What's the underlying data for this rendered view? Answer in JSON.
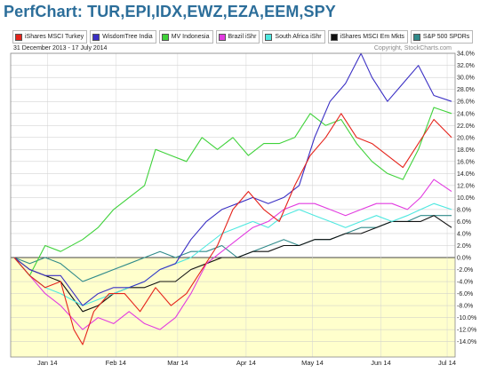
{
  "page": {
    "title": "PerfChart: TUR,EPI,IDX,EWZ,EZA,EEM,SPY"
  },
  "legend": [
    {
      "label": "iShares MSCI Turkey",
      "color": "#e5231b"
    },
    {
      "label": "WisdomTree India",
      "color": "#3a2fc4"
    },
    {
      "label": "MV Indonesia",
      "color": "#3fd23a"
    },
    {
      "label": "Brazil iShr",
      "color": "#e23be0"
    },
    {
      "label": "South Africa iShr",
      "color": "#4de8e0"
    },
    {
      "label": "iShares MSCI Em Mkts",
      "color": "#111111"
    },
    {
      "label": "S&P 500 SPDRs",
      "color": "#2f8a8a"
    }
  ],
  "chart_data": {
    "type": "line",
    "date_range_label": "31 December 2013 - 17 July 2014",
    "copyright": "Copyright, StockCharts.com",
    "ylim": [
      -16,
      35
    ],
    "y_ticks": [
      "34.0%",
      "32.0%",
      "30.0%",
      "28.0%",
      "26.0%",
      "24.0%",
      "22.0%",
      "20.0%",
      "18.0%",
      "16.0%",
      "14.0%",
      "12.0%",
      "10.0%",
      "8.0%",
      "6.0%",
      "4.0%",
      "2.0%",
      "0.0%",
      "-2.0%",
      "-4.0%",
      "-6.0%",
      "-8.0%",
      "-10.0%",
      "-12.0%",
      "-14.0%"
    ],
    "x_ticks": [
      "Jan 14",
      "Feb 14",
      "Mar 14",
      "Apr 14",
      "May 14",
      "Jun 14",
      "Jul 14"
    ],
    "x_tick_dates": [
      "2014-01-15",
      "2014-02-15",
      "2014-03-15",
      "2014-04-15",
      "2014-05-15",
      "2014-06-15",
      "2014-07-15"
    ],
    "x_range": [
      "2013-12-31",
      "2014-07-17"
    ],
    "background": {
      "above_zero": "#ffffff",
      "below_zero": "#ffffcc"
    },
    "series": [
      {
        "name": "iShares MSCI Turkey",
        "color": "#e5231b",
        "points": [
          [
            "2013-12-31",
            0
          ],
          [
            "2014-01-07",
            -3
          ],
          [
            "2014-01-14",
            -5
          ],
          [
            "2014-01-21",
            -4
          ],
          [
            "2014-01-27",
            -12
          ],
          [
            "2014-01-31",
            -14.5
          ],
          [
            "2014-02-05",
            -9
          ],
          [
            "2014-02-12",
            -6
          ],
          [
            "2014-02-19",
            -6
          ],
          [
            "2014-02-26",
            -9
          ],
          [
            "2014-03-05",
            -5
          ],
          [
            "2014-03-12",
            -8
          ],
          [
            "2014-03-19",
            -6
          ],
          [
            "2014-03-26",
            -2
          ],
          [
            "2014-04-02",
            2
          ],
          [
            "2014-04-09",
            8
          ],
          [
            "2014-04-16",
            11
          ],
          [
            "2014-04-23",
            8
          ],
          [
            "2014-04-30",
            6
          ],
          [
            "2014-05-07",
            12
          ],
          [
            "2014-05-14",
            17
          ],
          [
            "2014-05-21",
            20
          ],
          [
            "2014-05-28",
            24
          ],
          [
            "2014-06-04",
            20
          ],
          [
            "2014-06-11",
            19
          ],
          [
            "2014-06-18",
            17
          ],
          [
            "2014-06-25",
            15
          ],
          [
            "2014-07-02",
            19
          ],
          [
            "2014-07-09",
            23
          ],
          [
            "2014-07-17",
            20
          ]
        ]
      },
      {
        "name": "WisdomTree India",
        "color": "#3a2fc4",
        "points": [
          [
            "2013-12-31",
            0
          ],
          [
            "2014-01-07",
            -2
          ],
          [
            "2014-01-14",
            -3
          ],
          [
            "2014-01-21",
            -3
          ],
          [
            "2014-01-31",
            -8
          ],
          [
            "2014-02-07",
            -6
          ],
          [
            "2014-02-14",
            -5
          ],
          [
            "2014-02-21",
            -5
          ],
          [
            "2014-02-28",
            -4
          ],
          [
            "2014-03-07",
            -2
          ],
          [
            "2014-03-14",
            -1
          ],
          [
            "2014-03-21",
            3
          ],
          [
            "2014-03-28",
            6
          ],
          [
            "2014-04-04",
            8
          ],
          [
            "2014-04-11",
            9
          ],
          [
            "2014-04-18",
            10
          ],
          [
            "2014-04-25",
            9
          ],
          [
            "2014-05-02",
            10
          ],
          [
            "2014-05-09",
            12
          ],
          [
            "2014-05-16",
            20
          ],
          [
            "2014-05-23",
            26
          ],
          [
            "2014-05-30",
            29
          ],
          [
            "2014-06-06",
            34
          ],
          [
            "2014-06-11",
            30
          ],
          [
            "2014-06-18",
            26
          ],
          [
            "2014-06-25",
            29
          ],
          [
            "2014-07-02",
            32
          ],
          [
            "2014-07-09",
            27
          ],
          [
            "2014-07-17",
            26
          ]
        ]
      },
      {
        "name": "MV Indonesia",
        "color": "#3fd23a",
        "points": [
          [
            "2013-12-31",
            0
          ],
          [
            "2014-01-07",
            -3
          ],
          [
            "2014-01-14",
            2
          ],
          [
            "2014-01-21",
            1
          ],
          [
            "2014-01-31",
            3
          ],
          [
            "2014-02-07",
            5
          ],
          [
            "2014-02-14",
            8
          ],
          [
            "2014-02-21",
            10
          ],
          [
            "2014-02-28",
            12
          ],
          [
            "2014-03-05",
            18
          ],
          [
            "2014-03-12",
            17
          ],
          [
            "2014-03-19",
            16
          ],
          [
            "2014-03-26",
            20
          ],
          [
            "2014-04-02",
            18
          ],
          [
            "2014-04-09",
            20
          ],
          [
            "2014-04-16",
            17
          ],
          [
            "2014-04-23",
            19
          ],
          [
            "2014-04-30",
            19
          ],
          [
            "2014-05-07",
            20
          ],
          [
            "2014-05-14",
            24
          ],
          [
            "2014-05-21",
            22
          ],
          [
            "2014-05-28",
            23
          ],
          [
            "2014-06-04",
            19
          ],
          [
            "2014-06-11",
            16
          ],
          [
            "2014-06-18",
            14
          ],
          [
            "2014-06-25",
            13
          ],
          [
            "2014-07-02",
            18
          ],
          [
            "2014-07-09",
            25
          ],
          [
            "2014-07-17",
            24
          ]
        ]
      },
      {
        "name": "Brazil iShr",
        "color": "#e23be0",
        "points": [
          [
            "2013-12-31",
            0
          ],
          [
            "2014-01-07",
            -3
          ],
          [
            "2014-01-14",
            -6
          ],
          [
            "2014-01-21",
            -8
          ],
          [
            "2014-01-31",
            -12
          ],
          [
            "2014-02-07",
            -10
          ],
          [
            "2014-02-14",
            -11
          ],
          [
            "2014-02-21",
            -9
          ],
          [
            "2014-02-28",
            -11
          ],
          [
            "2014-03-07",
            -12
          ],
          [
            "2014-03-14",
            -10
          ],
          [
            "2014-03-21",
            -6
          ],
          [
            "2014-03-28",
            -1
          ],
          [
            "2014-04-04",
            1
          ],
          [
            "2014-04-11",
            3
          ],
          [
            "2014-04-18",
            5
          ],
          [
            "2014-04-25",
            6
          ],
          [
            "2014-05-02",
            8
          ],
          [
            "2014-05-09",
            9
          ],
          [
            "2014-05-16",
            9
          ],
          [
            "2014-05-23",
            8
          ],
          [
            "2014-05-30",
            7
          ],
          [
            "2014-06-06",
            8
          ],
          [
            "2014-06-13",
            9
          ],
          [
            "2014-06-20",
            9
          ],
          [
            "2014-06-27",
            8
          ],
          [
            "2014-07-03",
            10
          ],
          [
            "2014-07-09",
            13
          ],
          [
            "2014-07-17",
            11
          ]
        ]
      },
      {
        "name": "South Africa iShr",
        "color": "#4de8e0",
        "points": [
          [
            "2013-12-31",
            0
          ],
          [
            "2014-01-07",
            -3
          ],
          [
            "2014-01-14",
            -5
          ],
          [
            "2014-01-21",
            -6
          ],
          [
            "2014-01-31",
            -8
          ],
          [
            "2014-02-07",
            -7
          ],
          [
            "2014-02-14",
            -6
          ],
          [
            "2014-02-21",
            -5
          ],
          [
            "2014-02-28",
            -4
          ],
          [
            "2014-03-07",
            -2
          ],
          [
            "2014-03-14",
            -1
          ],
          [
            "2014-03-21",
            0
          ],
          [
            "2014-03-28",
            2
          ],
          [
            "2014-04-04",
            4
          ],
          [
            "2014-04-11",
            5
          ],
          [
            "2014-04-18",
            6
          ],
          [
            "2014-04-25",
            5
          ],
          [
            "2014-05-02",
            7
          ],
          [
            "2014-05-09",
            8
          ],
          [
            "2014-05-16",
            7
          ],
          [
            "2014-05-23",
            6
          ],
          [
            "2014-05-30",
            5
          ],
          [
            "2014-06-06",
            6
          ],
          [
            "2014-06-13",
            7
          ],
          [
            "2014-06-20",
            6
          ],
          [
            "2014-06-27",
            7
          ],
          [
            "2014-07-03",
            8
          ],
          [
            "2014-07-09",
            9
          ],
          [
            "2014-07-17",
            8
          ]
        ]
      },
      {
        "name": "iShares MSCI Em Mkts",
        "color": "#111111",
        "points": [
          [
            "2013-12-31",
            0
          ],
          [
            "2014-01-07",
            -2
          ],
          [
            "2014-01-14",
            -3
          ],
          [
            "2014-01-21",
            -4
          ],
          [
            "2014-01-31",
            -9
          ],
          [
            "2014-02-07",
            -8
          ],
          [
            "2014-02-14",
            -6
          ],
          [
            "2014-02-21",
            -5
          ],
          [
            "2014-02-28",
            -5
          ],
          [
            "2014-03-07",
            -4
          ],
          [
            "2014-03-14",
            -4
          ],
          [
            "2014-03-21",
            -2
          ],
          [
            "2014-03-28",
            -1
          ],
          [
            "2014-04-04",
            0
          ],
          [
            "2014-04-11",
            0
          ],
          [
            "2014-04-18",
            1
          ],
          [
            "2014-04-25",
            1
          ],
          [
            "2014-05-02",
            2
          ],
          [
            "2014-05-09",
            2
          ],
          [
            "2014-05-16",
            3
          ],
          [
            "2014-05-23",
            3
          ],
          [
            "2014-05-30",
            4
          ],
          [
            "2014-06-06",
            4
          ],
          [
            "2014-06-13",
            5
          ],
          [
            "2014-06-20",
            6
          ],
          [
            "2014-06-27",
            6
          ],
          [
            "2014-07-03",
            6
          ],
          [
            "2014-07-09",
            7
          ],
          [
            "2014-07-17",
            5
          ]
        ]
      },
      {
        "name": "S&P 500 SPDRs",
        "color": "#2f8a8a",
        "points": [
          [
            "2013-12-31",
            0
          ],
          [
            "2014-01-07",
            -1
          ],
          [
            "2014-01-14",
            0
          ],
          [
            "2014-01-21",
            -1
          ],
          [
            "2014-01-31",
            -4
          ],
          [
            "2014-02-07",
            -3
          ],
          [
            "2014-02-14",
            -2
          ],
          [
            "2014-02-21",
            -1
          ],
          [
            "2014-02-28",
            0
          ],
          [
            "2014-03-07",
            1
          ],
          [
            "2014-03-14",
            0
          ],
          [
            "2014-03-21",
            1
          ],
          [
            "2014-03-28",
            1
          ],
          [
            "2014-04-04",
            2
          ],
          [
            "2014-04-11",
            0
          ],
          [
            "2014-04-18",
            1
          ],
          [
            "2014-04-25",
            2
          ],
          [
            "2014-05-02",
            3
          ],
          [
            "2014-05-09",
            2
          ],
          [
            "2014-05-16",
            3
          ],
          [
            "2014-05-23",
            3
          ],
          [
            "2014-05-30",
            4
          ],
          [
            "2014-06-06",
            5
          ],
          [
            "2014-06-13",
            5
          ],
          [
            "2014-06-20",
            6
          ],
          [
            "2014-06-27",
            6
          ],
          [
            "2014-07-03",
            7
          ],
          [
            "2014-07-09",
            7
          ],
          [
            "2014-07-17",
            7
          ]
        ]
      }
    ]
  }
}
